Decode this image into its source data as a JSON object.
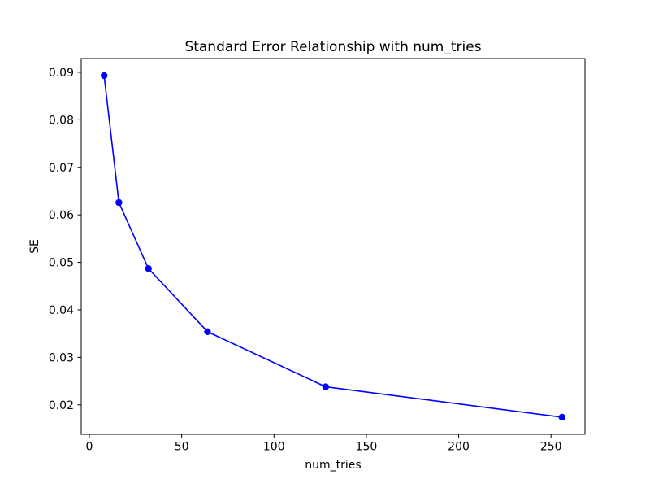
{
  "chart_data": {
    "type": "line",
    "title": "Standard Error Relationship with num_tries",
    "xlabel": "num_tries",
    "ylabel": "SE",
    "x": [
      8,
      16,
      32,
      64,
      128,
      256
    ],
    "y": [
      0.0893,
      0.0626,
      0.0487,
      0.0354,
      0.0238,
      0.0174
    ],
    "x_ticks": [
      0,
      50,
      100,
      150,
      200,
      250
    ],
    "y_ticks": [
      0.02,
      0.03,
      0.04,
      0.05,
      0.06,
      0.07,
      0.08,
      0.09
    ],
    "xlim": [
      -4.4,
      268.4
    ],
    "ylim": [
      0.0138,
      0.0929
    ],
    "grid": false,
    "legend_position": "none",
    "line_color": "#0000ff",
    "marker": "o",
    "marker_color": "#0000ff",
    "background_color": "#ffffff",
    "spine_color": "#000000"
  }
}
